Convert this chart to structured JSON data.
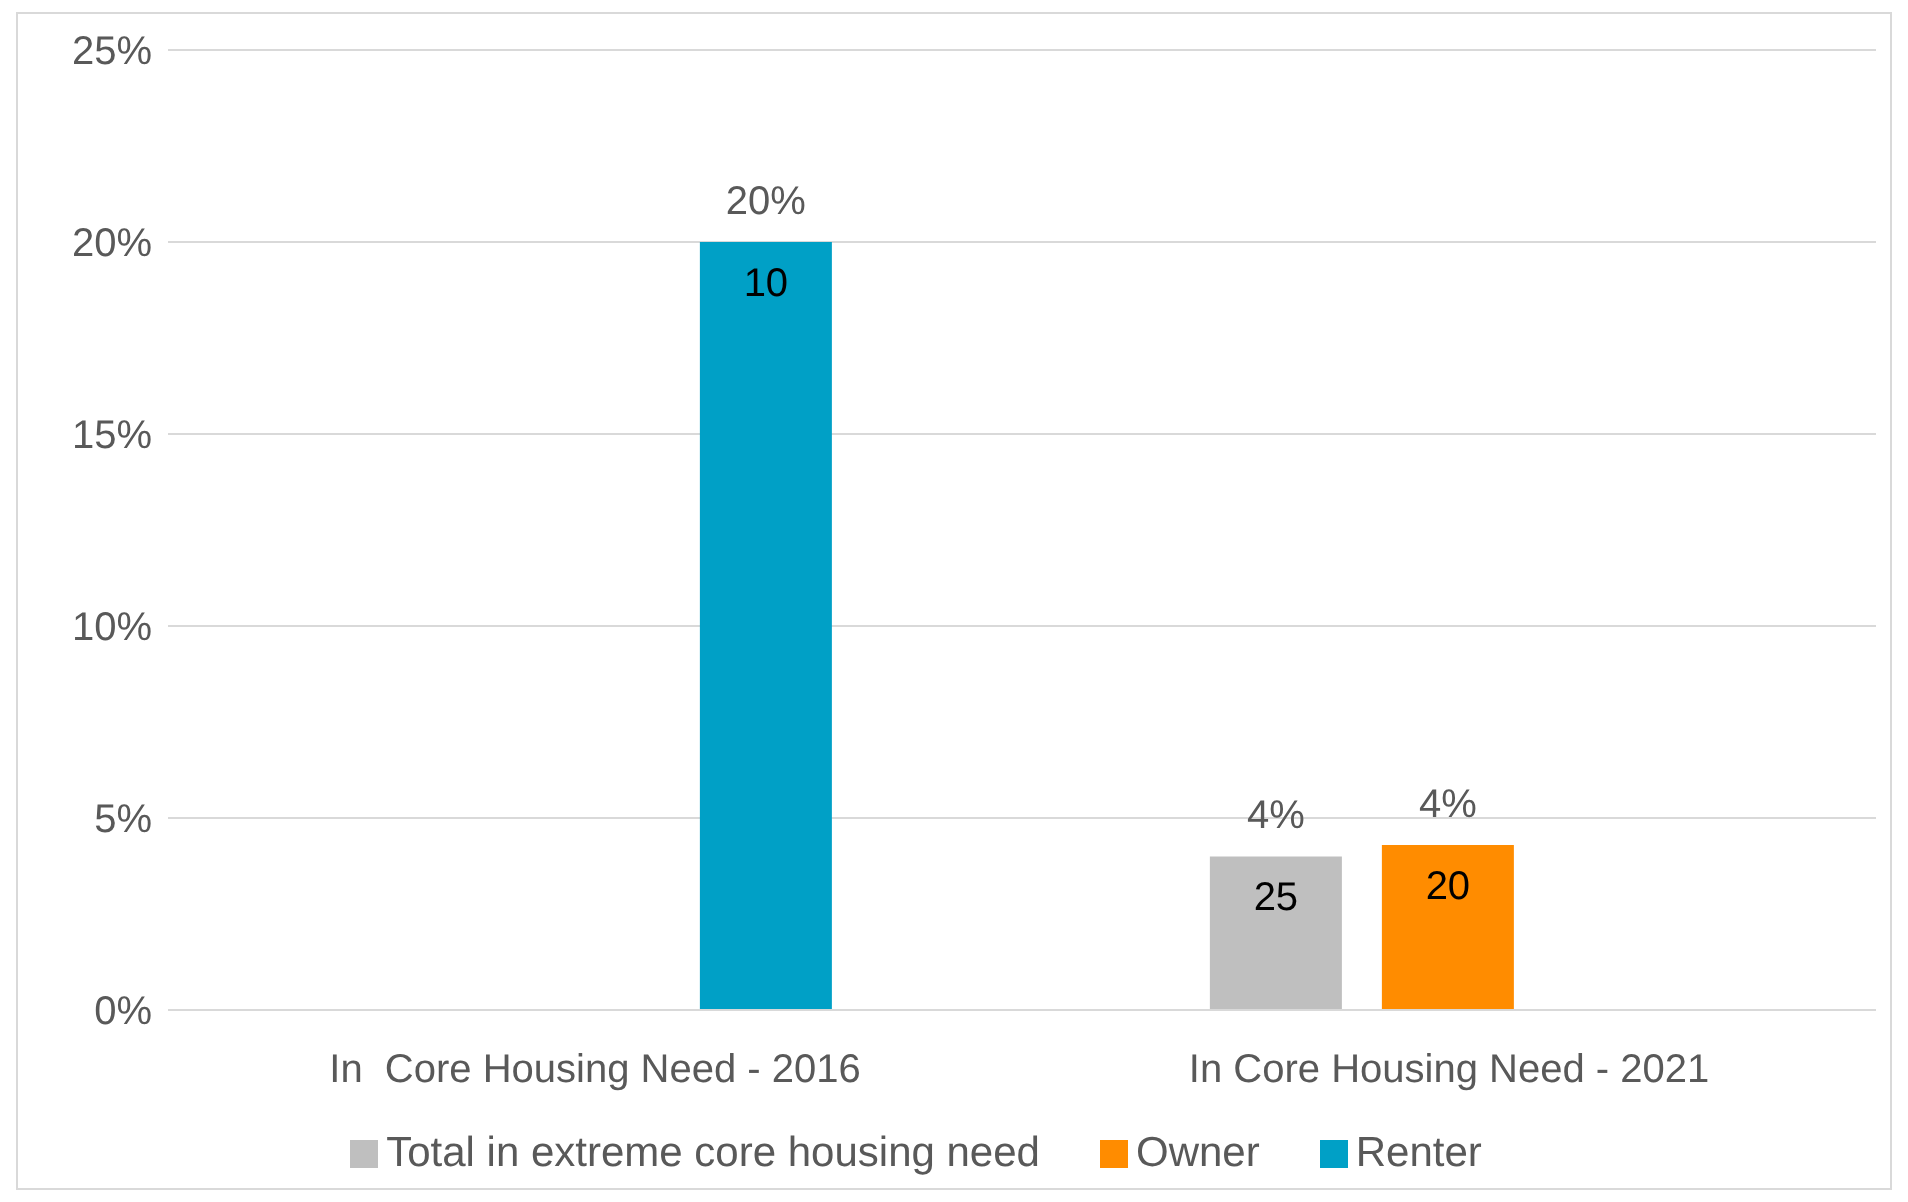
{
  "chart_data": {
    "type": "bar",
    "categories": [
      "In  Core Housing Need - 2016",
      "In Core Housing Need - 2021"
    ],
    "series": [
      {
        "name": "Total in extreme core housing need",
        "color": "#bfbfbf",
        "values": [
          null,
          4
        ],
        "value_labels": [
          null,
          "4%"
        ]
      },
      {
        "name": "Owner",
        "color": "#ff8c00",
        "values": [
          null,
          4.3
        ],
        "value_labels": [
          null,
          "4%"
        ]
      },
      {
        "name": "Renter",
        "color": "#00a0c6",
        "values": [
          20,
          null
        ],
        "value_labels": [
          "20%",
          null
        ]
      }
    ],
    "annotations": [
      "10",
      "25",
      "20"
    ],
    "ylim": [
      0,
      25
    ],
    "yticks": [
      {
        "value": 0,
        "label": "0%"
      },
      {
        "value": 5,
        "label": "5%"
      },
      {
        "value": 10,
        "label": "10%"
      },
      {
        "value": 15,
        "label": "15%"
      },
      {
        "value": 20,
        "label": "20%"
      },
      {
        "value": 25,
        "label": "25%"
      }
    ],
    "grid": "y",
    "legend": "bottom"
  }
}
